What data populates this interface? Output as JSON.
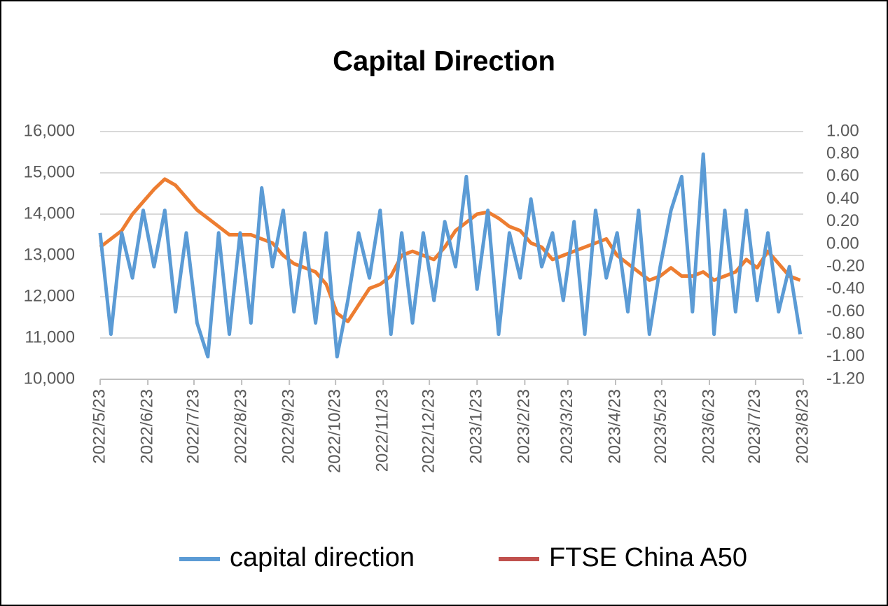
{
  "chart_data": {
    "type": "line",
    "title": "Capital Direction",
    "x": [
      "2022/5/23",
      "2022/5/30",
      "2022/6/6",
      "2022/6/13",
      "2022/6/20",
      "2022/6/27",
      "2022/7/4",
      "2022/7/11",
      "2022/7/18",
      "2022/7/25",
      "2022/8/1",
      "2022/8/8",
      "2022/8/15",
      "2022/8/22",
      "2022/8/29",
      "2022/9/5",
      "2022/9/12",
      "2022/9/19",
      "2022/9/26",
      "2022/10/3",
      "2022/10/10",
      "2022/10/17",
      "2022/10/24",
      "2022/10/31",
      "2022/11/7",
      "2022/11/14",
      "2022/11/21",
      "2022/11/28",
      "2022/12/5",
      "2022/12/12",
      "2022/12/19",
      "2022/12/26",
      "2023/1/2",
      "2023/1/9",
      "2023/1/16",
      "2023/1/23",
      "2023/1/30",
      "2023/2/6",
      "2023/2/13",
      "2023/2/20",
      "2023/2/27",
      "2023/3/6",
      "2023/3/13",
      "2023/3/20",
      "2023/3/27",
      "2023/4/3",
      "2023/4/10",
      "2023/4/17",
      "2023/4/24",
      "2023/5/1",
      "2023/5/8",
      "2023/5/15",
      "2023/5/22",
      "2023/5/29",
      "2023/6/5",
      "2023/6/12",
      "2023/6/19",
      "2023/6/26",
      "2023/7/3",
      "2023/7/10",
      "2023/7/17",
      "2023/7/24",
      "2023/7/31",
      "2023/8/7",
      "2023/8/14",
      "2023/8/21"
    ],
    "series": [
      {
        "name": "capital direction",
        "color": "#5b9bd5",
        "axis": "y2",
        "values": [
          0.1,
          -0.8,
          0.1,
          -0.3,
          0.3,
          -0.2,
          0.3,
          -0.6,
          0.1,
          -0.7,
          -1.0,
          0.1,
          -0.8,
          0.1,
          -0.7,
          0.5,
          -0.2,
          0.3,
          -0.6,
          0.1,
          -0.7,
          0.1,
          -1.0,
          -0.5,
          0.1,
          -0.3,
          0.3,
          -0.8,
          0.1,
          -0.7,
          0.1,
          -0.5,
          0.2,
          -0.2,
          0.6,
          -0.4,
          0.3,
          -0.8,
          0.1,
          -0.3,
          0.4,
          -0.2,
          0.1,
          -0.5,
          0.2,
          -0.8,
          0.3,
          -0.3,
          0.1,
          -0.6,
          0.3,
          -0.8,
          -0.2,
          0.3,
          0.6,
          -0.6,
          0.8,
          -0.8,
          0.3,
          -0.6,
          0.3,
          -0.5,
          0.1,
          -0.6,
          -0.2,
          -0.8
        ]
      },
      {
        "name": "FTSE China A50",
        "color": "#ed7d31",
        "legend_color": "#c0504d",
        "values": [
          13200,
          13400,
          13600,
          14000,
          14300,
          14600,
          14850,
          14700,
          14400,
          14100,
          13900,
          13700,
          13500,
          13500,
          13500,
          13400,
          13300,
          13000,
          12800,
          12700,
          12600,
          12300,
          11600,
          11400,
          11800,
          12200,
          12300,
          12500,
          13000,
          13100,
          13000,
          12900,
          13200,
          13600,
          13800,
          14000,
          14050,
          13900,
          13700,
          13600,
          13300,
          13200,
          12900,
          13000,
          13100,
          13200,
          13300,
          13400,
          13000,
          12800,
          12600,
          12400,
          12500,
          12700,
          12500,
          12500,
          12600,
          12400,
          12500,
          12600,
          12900,
          12700,
          13100,
          12800,
          12500,
          12400
        ]
      }
    ],
    "xlim": [
      "2022/5/23",
      "2023/8/23"
    ],
    "xticks": [
      "2022/5/23",
      "2022/6/23",
      "2022/7/23",
      "2022/8/23",
      "2022/9/23",
      "2022/10/23",
      "2022/11/23",
      "2022/12/23",
      "2023/1/23",
      "2023/2/23",
      "2023/3/23",
      "2023/4/23",
      "2023/5/23",
      "2023/6/23",
      "2023/7/23",
      "2023/8/23"
    ],
    "ylim": [
      10000,
      16000
    ],
    "yticks": [
      {
        "value": 10000,
        "label": "10,000"
      },
      {
        "value": 11000,
        "label": "11,000"
      },
      {
        "value": 12000,
        "label": "12,000"
      },
      {
        "value": 13000,
        "label": "13,000"
      },
      {
        "value": 14000,
        "label": "14,000"
      },
      {
        "value": 15000,
        "label": "15,000"
      },
      {
        "value": 16000,
        "label": "16,000"
      }
    ],
    "y2lim": [
      -1.2,
      1.0
    ],
    "y2ticks": [
      {
        "value": -1.2,
        "label": "-1.20"
      },
      {
        "value": -1.0,
        "label": "-1.00"
      },
      {
        "value": -0.8,
        "label": "-0.80"
      },
      {
        "value": -0.6,
        "label": "-0.60"
      },
      {
        "value": -0.4,
        "label": "-0.40"
      },
      {
        "value": -0.2,
        "label": "-0.20"
      },
      {
        "value": 0,
        "label": "0.00"
      },
      {
        "value": 0.2,
        "label": "0.20"
      },
      {
        "value": 0.4,
        "label": "0.40"
      },
      {
        "value": 0.6,
        "label": "0.60"
      },
      {
        "value": 0.8,
        "label": "0.80"
      },
      {
        "value": 1.0,
        "label": "1.00"
      }
    ],
    "grid": true
  }
}
